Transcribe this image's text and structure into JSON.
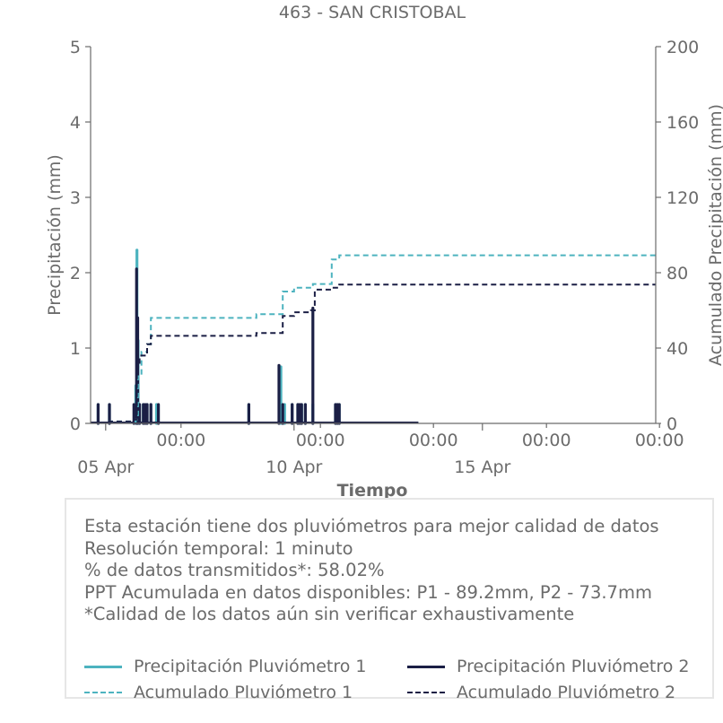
{
  "colors": {
    "p1": "#4db3bf",
    "p2": "#1b1f45",
    "axis": "#6b6b6b"
  },
  "chart_data": {
    "type": "line",
    "title": "463 - SAN CRISTOBAL",
    "xlabel": "Tiempo",
    "ylabel": "Precipitación (mm)",
    "ylabel_right": "Acumulado Precipitación (mm)",
    "ylim": [
      0,
      5
    ],
    "ylim_right": [
      0,
      200
    ],
    "yticks": [
      "0",
      "1",
      "2",
      "3",
      "4",
      "5"
    ],
    "yticks_right": [
      "0",
      "40",
      "80",
      "120",
      "160",
      "200"
    ],
    "xlim_days": [
      4.6,
      19.6
    ],
    "xticks_major": [
      {
        "day": 5,
        "label": "05 Apr"
      },
      {
        "day": 10,
        "label": "10 Apr"
      },
      {
        "day": 15,
        "label": "15 Apr"
      }
    ],
    "xticks_minor": [
      {
        "day": 7,
        "label": "00:00"
      },
      {
        "day": 10.7,
        "label": "00:00"
      },
      {
        "day": 13.7,
        "label": "00:00"
      },
      {
        "day": 16.7,
        "label": "00:00"
      },
      {
        "day": 19.7,
        "label": "00:00"
      }
    ],
    "grid": false,
    "series": [
      {
        "name": "Precipitación Pluviómetro 1",
        "style": "solid",
        "axis": "left",
        "x": [
          4.8,
          5.1,
          5.8,
          5.83,
          5.86,
          5.9,
          6.0,
          6.1,
          6.2,
          6.35,
          8.8,
          9.65,
          9.75,
          9.95,
          10.1,
          10.2,
          10.3,
          10.5,
          11.1,
          11.15,
          11.2
        ],
        "values": [
          0.25,
          0.25,
          0.5,
          2.3,
          1.1,
          0.25,
          0.25,
          0.25,
          0.25,
          0.25,
          0.25,
          0.75,
          0.25,
          0.25,
          0.25,
          0.25,
          0.25,
          0.25,
          0.25,
          0.25,
          0.25
        ],
        "x_end": 13.3
      },
      {
        "name": "Precipitación Pluviómetro 2",
        "style": "solid",
        "axis": "left",
        "x": [
          4.8,
          5.1,
          5.75,
          5.82,
          5.85,
          5.9,
          6.0,
          6.05,
          6.1,
          6.2,
          6.4,
          8.8,
          9.6,
          9.7,
          9.95,
          10.1,
          10.15,
          10.2,
          10.3,
          10.5,
          11.1,
          11.15,
          11.2
        ],
        "values": [
          0.25,
          0.25,
          0.25,
          2.05,
          1.4,
          0.25,
          0.25,
          0.25,
          0.25,
          0.25,
          0.25,
          0.25,
          0.77,
          0.25,
          0.25,
          0.25,
          0.25,
          0.25,
          0.25,
          1.53,
          0.25,
          0.25,
          0.25
        ],
        "x_end": 13.3
      },
      {
        "name": "Acumulado Pluviómetro 1",
        "style": "dashed",
        "axis": "right",
        "x": [
          4.6,
          5.1,
          5.8,
          5.86,
          5.95,
          6.1,
          6.2,
          8.8,
          9.0,
          9.6,
          9.7,
          10.0,
          10.1,
          10.5,
          11.0,
          11.2,
          19.6
        ],
        "values": [
          0.5,
          1,
          2,
          25,
          38,
          42,
          56,
          56,
          58,
          58,
          70,
          72,
          72,
          74,
          87,
          89.2,
          89.2
        ]
      },
      {
        "name": "Acumulado Pluviómetro 2",
        "style": "dashed",
        "axis": "right",
        "x": [
          4.6,
          5.1,
          5.75,
          5.83,
          5.9,
          6.1,
          6.2,
          8.8,
          9.0,
          9.6,
          9.7,
          10.0,
          10.1,
          10.45,
          10.55,
          11.0,
          11.2,
          19.6
        ],
        "values": [
          0.5,
          1,
          2,
          30,
          36,
          42,
          46.5,
          46.5,
          48,
          48,
          57,
          59,
          59,
          60,
          71,
          72,
          73.7,
          73.7
        ]
      }
    ]
  },
  "info": {
    "lines": [
      "Esta estación tiene dos pluviómetros para mejor calidad de datos",
      "Resolución temporal: 1 minuto",
      "% de datos transmitidos*: 58.02%",
      "PPT Acumulada en datos disponibles: P1 - 89.2mm, P2 - 73.7mm",
      "*Calidad de los datos aún sin verificar exhaustivamente"
    ]
  },
  "legend": [
    {
      "label": "Precipitación Pluviómetro 1",
      "color_key": "p1",
      "style": "solid"
    },
    {
      "label": "Precipitación Pluviómetro 2",
      "color_key": "p2",
      "style": "solid"
    },
    {
      "label": "Acumulado Pluviómetro 1",
      "color_key": "p1",
      "style": "dashed"
    },
    {
      "label": "Acumulado Pluviómetro 2",
      "color_key": "p2",
      "style": "dashed"
    }
  ]
}
